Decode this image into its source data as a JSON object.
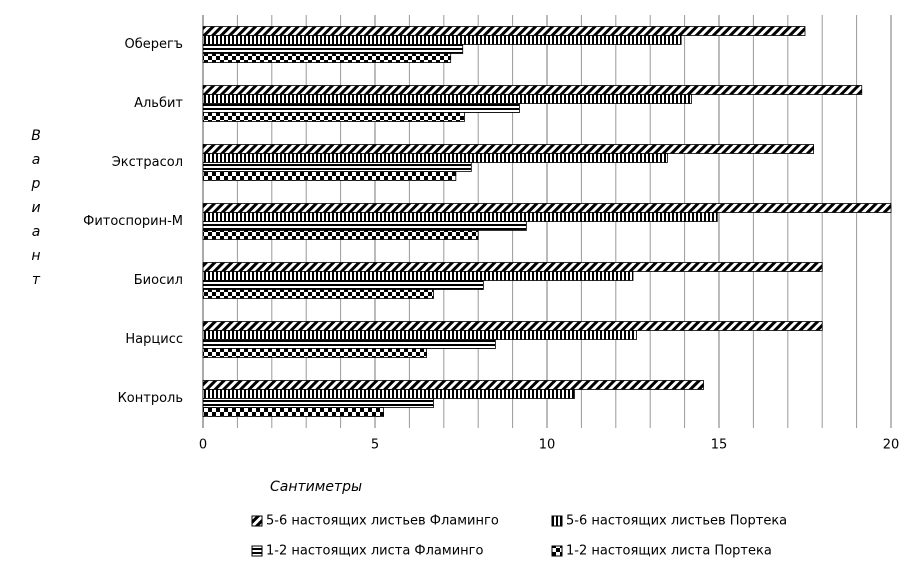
{
  "chart_data": {
    "type": "barh",
    "categories": [
      "Оберегъ",
      "Альбит",
      "Экстрасол",
      "Фитоспорин-М",
      "Биосил",
      "Нарцисс",
      "Контроль"
    ],
    "series": [
      {
        "name": "5-6 настоящих листьев Фламинго",
        "color": "#000000",
        "pattern": "diagonal",
        "values": [
          17.5,
          19.15,
          17.75,
          20.0,
          18.0,
          18.0,
          14.55
        ]
      },
      {
        "name": "5-6 настоящих листьев Портека",
        "color": "#000000",
        "pattern": "vertical",
        "values": [
          13.9,
          14.2,
          13.5,
          14.95,
          12.5,
          12.6,
          10.8
        ]
      },
      {
        "name": "1-2 настоящих листа Фламинго",
        "color": "#000000",
        "pattern": "horizontal",
        "values": [
          7.55,
          9.2,
          7.8,
          9.4,
          8.15,
          8.5,
          6.7
        ]
      },
      {
        "name": "1-2 настоящих листа Портека",
        "color": "#000000",
        "pattern": "checker",
        "values": [
          7.2,
          7.6,
          7.35,
          8.0,
          6.7,
          6.5,
          5.25
        ]
      }
    ],
    "x_label": "Сантиметры",
    "y_label": "Вариант",
    "xlim": [
      0,
      20
    ],
    "xticks": [
      0,
      5,
      10,
      15,
      20
    ],
    "minor_xticks": [
      1,
      2,
      3,
      4,
      6,
      7,
      8,
      9,
      11,
      12,
      13,
      14,
      16,
      17,
      18,
      19
    ],
    "grid": true,
    "legend": "bottom"
  }
}
